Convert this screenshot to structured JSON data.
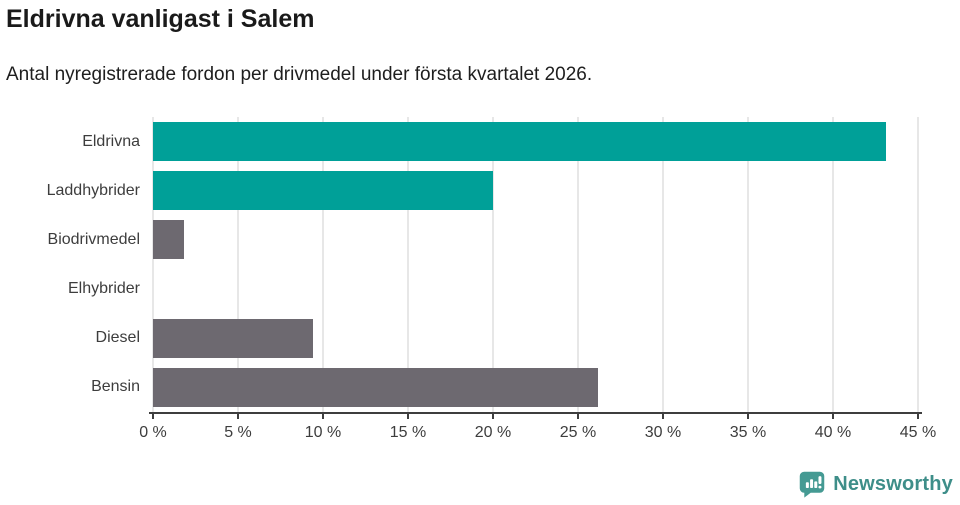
{
  "header": {
    "title": "Eldrivna vanligast i Salem",
    "subtitle": "Antal nyregistrerade fordon per drivmedel under första kvartalet 2026."
  },
  "chart_data": {
    "type": "bar",
    "orientation": "horizontal",
    "title": "Eldrivna vanligast i Salem",
    "subtitle": "Antal nyregistrerade fordon per drivmedel under första kvartalet 2026.",
    "categories": [
      "Eldrivna",
      "Laddhybrider",
      "Biodrivmedel",
      "Elhybrider",
      "Diesel",
      "Bensin"
    ],
    "values": [
      43.1,
      20.0,
      1.8,
      0,
      9.4,
      26.2
    ],
    "unit": "%",
    "xlim": [
      0,
      45
    ],
    "x_tick_values": [
      0,
      5,
      10,
      15,
      20,
      25,
      30,
      35,
      40,
      45
    ],
    "x_tick_labels": [
      "0 %",
      "5 %",
      "10 %",
      "15 %",
      "20 %",
      "25 %",
      "30 %",
      "35 %",
      "40 %",
      "45 %"
    ],
    "bar_colors": [
      "#00a098",
      "#00a098",
      "#6d6970",
      "#6d6970",
      "#6d6970",
      "#6d6970"
    ],
    "accent_color": "#00a098",
    "muted_color": "#6d6970",
    "grid": true,
    "gridline_color": "#e7e7e7",
    "axis_color": "#3d3d3d",
    "legend": "none"
  },
  "footer": {
    "brand": "Newsworthy",
    "brand_text_color": "#3e8e89",
    "brand_icon_color": "#459a93"
  }
}
